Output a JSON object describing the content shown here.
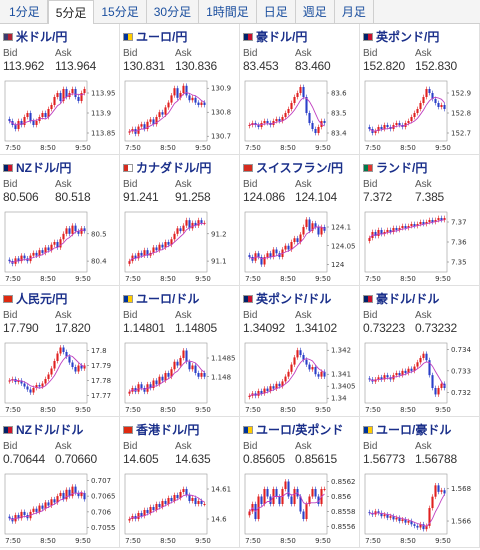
{
  "timeframe_tabs": [
    "1分足",
    "5分足",
    "15分足",
    "30分足",
    "1時間足",
    "日足",
    "週足",
    "月足"
  ],
  "active_tab_index": 1,
  "labels": {
    "bid": "Bid",
    "ask": "Ask"
  },
  "colors": {
    "up": "#e02020",
    "down": "#2a3fc8",
    "ma": "#c040c0",
    "title": "#1a2f8a",
    "tab_link": "#1a4e9e"
  },
  "cards": [
    {
      "pair": "米ドル/円",
      "icon": "flag-us",
      "flag": [
        "#3c3b6e",
        "#b22234"
      ],
      "bid": "113.962",
      "ask": "113.964",
      "chart_data": {
        "type": "candlestick",
        "x_ticks": [
          "7:50",
          "8:50",
          "9:50"
        ],
        "y_ticks": [
          "113.95",
          "113.9",
          "113.85"
        ],
        "ylim": [
          113.83,
          113.98
        ],
        "ma_color": "#c040c0",
        "close": [
          113.88,
          113.87,
          113.86,
          113.88,
          113.87,
          113.89,
          113.9,
          113.88,
          113.87,
          113.88,
          113.89,
          113.9,
          113.89,
          113.91,
          113.92,
          113.94,
          113.95,
          113.93,
          113.96,
          113.94,
          113.95,
          113.96,
          113.94,
          113.93,
          113.95,
          113.96
        ]
      }
    },
    {
      "pair": "ユーロ/円",
      "icon": "flag-eu",
      "flag": [
        "#003399",
        "#ffcc00"
      ],
      "bid": "130.831",
      "ask": "130.836",
      "chart_data": {
        "type": "candlestick",
        "x_ticks": [
          "7:50",
          "8:50",
          "9:50"
        ],
        "y_ticks": [
          "130.9",
          "130.8",
          "130.7"
        ],
        "ylim": [
          130.68,
          130.93
        ],
        "ma_color": "#c040c0",
        "close": [
          130.72,
          130.73,
          130.71,
          130.74,
          130.75,
          130.73,
          130.76,
          130.77,
          130.75,
          130.78,
          130.8,
          130.79,
          130.82,
          130.84,
          130.87,
          130.9,
          130.86,
          130.88,
          130.91,
          130.87,
          130.85,
          130.86,
          130.84,
          130.83,
          130.84,
          130.83
        ]
      }
    },
    {
      "pair": "豪ドル/円",
      "icon": "flag-au",
      "flag": [
        "#012169",
        "#c8102e"
      ],
      "bid": "83.453",
      "ask": "83.460",
      "chart_data": {
        "type": "candlestick",
        "x_ticks": [
          "7:50",
          "8:50",
          "9:50"
        ],
        "y_ticks": [
          "83.6",
          "83.5",
          "83.4"
        ],
        "ylim": [
          83.36,
          83.66
        ],
        "ma_color": "#c040c0",
        "close": [
          83.44,
          83.45,
          83.44,
          83.43,
          83.45,
          83.46,
          83.45,
          83.44,
          83.46,
          83.47,
          83.46,
          83.48,
          83.5,
          83.52,
          83.55,
          83.58,
          83.6,
          83.63,
          83.58,
          83.5,
          83.45,
          83.42,
          83.4,
          83.43,
          83.46,
          83.45
        ]
      }
    },
    {
      "pair": "英ポンド/円",
      "icon": "flag-gb",
      "flag": [
        "#012169",
        "#c8102e"
      ],
      "bid": "152.820",
      "ask": "152.830",
      "chart_data": {
        "type": "candlestick",
        "x_ticks": [
          "7:50",
          "8:50",
          "9:50"
        ],
        "y_ticks": [
          "152.9",
          "152.8",
          "152.7"
        ],
        "ylim": [
          152.66,
          152.96
        ],
        "ma_color": "#c040c0",
        "close": [
          152.72,
          152.7,
          152.71,
          152.73,
          152.72,
          152.74,
          152.73,
          152.72,
          152.74,
          152.75,
          152.74,
          152.73,
          152.75,
          152.76,
          152.78,
          152.8,
          152.82,
          152.85,
          152.88,
          152.92,
          152.9,
          152.87,
          152.85,
          152.83,
          152.84,
          152.82
        ]
      }
    },
    {
      "pair": "NZドル/円",
      "icon": "flag-nz",
      "flag": [
        "#012169",
        "#cc142b"
      ],
      "bid": "80.506",
      "ask": "80.518",
      "chart_data": {
        "type": "candlestick",
        "x_ticks": [
          "7:50",
          "8:50",
          "9:50"
        ],
        "y_ticks": [
          "80.5",
          "80.4"
        ],
        "ylim": [
          80.36,
          80.58
        ],
        "ma_color": "#c040c0",
        "close": [
          80.4,
          80.39,
          80.41,
          80.4,
          80.42,
          80.41,
          80.4,
          80.42,
          80.43,
          80.42,
          80.44,
          80.43,
          80.45,
          80.44,
          80.46,
          80.47,
          80.45,
          80.48,
          80.5,
          80.52,
          80.5,
          80.53,
          80.51,
          80.5,
          80.52,
          80.51
        ]
      }
    },
    {
      "pair": "カナダドル/円",
      "icon": "flag-ca",
      "flag": [
        "#d52b1e",
        "#ffffff"
      ],
      "bid": "91.241",
      "ask": "91.258",
      "chart_data": {
        "type": "candlestick",
        "x_ticks": [
          "7:50",
          "8:50",
          "9:50"
        ],
        "y_ticks": [
          "91.2",
          "91.1"
        ],
        "ylim": [
          91.06,
          91.28
        ],
        "ma_color": "#c040c0",
        "close": [
          91.1,
          91.12,
          91.11,
          91.13,
          91.12,
          91.14,
          91.12,
          91.13,
          91.15,
          91.14,
          91.16,
          91.15,
          91.17,
          91.16,
          91.18,
          91.2,
          91.22,
          91.21,
          91.23,
          91.25,
          91.22,
          91.24,
          91.23,
          91.25,
          91.24,
          91.24
        ]
      }
    },
    {
      "pair": "スイスフラン/円",
      "icon": "flag-ch",
      "flag": [
        "#d52b1e",
        "#d52b1e"
      ],
      "bid": "124.086",
      "ask": "124.104",
      "chart_data": {
        "type": "candlestick",
        "x_ticks": [
          "7:50",
          "8:50",
          "9:50"
        ],
        "y_ticks": [
          "124.1",
          "124.05",
          "124"
        ],
        "ylim": [
          123.98,
          124.14
        ],
        "ma_color": "#c040c0",
        "close": [
          124.02,
          124.01,
          124.03,
          124.02,
          124.0,
          124.02,
          124.03,
          124.02,
          124.04,
          124.03,
          124.02,
          124.04,
          124.05,
          124.04,
          124.06,
          124.07,
          124.06,
          124.08,
          124.1,
          124.12,
          124.09,
          124.11,
          124.1,
          124.08,
          124.1,
          124.09
        ]
      }
    },
    {
      "pair": "ランド/円",
      "icon": "flag-za",
      "flag": [
        "#007a4d",
        "#de3831"
      ],
      "bid": "7.372",
      "ask": "7.385",
      "chart_data": {
        "type": "candlestick",
        "x_ticks": [
          "7:50",
          "8:50",
          "9:50"
        ],
        "y_ticks": [
          "7.37",
          "7.36",
          "7.35"
        ],
        "ylim": [
          7.345,
          7.375
        ],
        "ma_color": "#c040c0",
        "close": [
          7.362,
          7.365,
          7.363,
          7.366,
          7.364,
          7.365,
          7.366,
          7.365,
          7.367,
          7.366,
          7.367,
          7.368,
          7.367,
          7.368,
          7.369,
          7.368,
          7.369,
          7.37,
          7.369,
          7.37,
          7.371,
          7.37,
          7.371,
          7.372,
          7.371,
          7.372
        ]
      }
    },
    {
      "pair": "人民元/円",
      "icon": "flag-cn",
      "flag": [
        "#de2910",
        "#de2910"
      ],
      "bid": "17.790",
      "ask": "17.820",
      "chart_data": {
        "type": "candlestick",
        "x_ticks": [
          "7:50",
          "8:50",
          "9:50"
        ],
        "y_ticks": [
          "17.8",
          "17.79",
          "17.78",
          "17.77"
        ],
        "ylim": [
          17.765,
          17.805
        ],
        "ma_color": "#c040c0",
        "close": [
          17.78,
          17.781,
          17.779,
          17.78,
          17.778,
          17.776,
          17.774,
          17.772,
          17.775,
          17.777,
          17.776,
          17.778,
          17.781,
          17.784,
          17.788,
          17.793,
          17.798,
          17.802,
          17.799,
          17.796,
          17.792,
          17.789,
          17.786,
          17.79,
          17.788,
          17.79
        ]
      }
    },
    {
      "pair": "ユーロ/ドル",
      "icon": "flag-eu",
      "flag": [
        "#003399",
        "#ffcc00"
      ],
      "bid": "1.14801",
      "ask": "1.14805",
      "chart_data": {
        "type": "candlestick",
        "x_ticks": [
          "7:50",
          "8:50",
          "9:50"
        ],
        "y_ticks": [
          "1.1485",
          "1.148"
        ],
        "ylim": [
          1.1473,
          1.1489
        ],
        "ma_color": "#c040c0",
        "close": [
          1.1476,
          1.1477,
          1.1476,
          1.1478,
          1.1477,
          1.1476,
          1.1478,
          1.1477,
          1.1479,
          1.1478,
          1.148,
          1.1479,
          1.1481,
          1.148,
          1.1482,
          1.1484,
          1.1483,
          1.1485,
          1.1487,
          1.1484,
          1.1482,
          1.1483,
          1.1481,
          1.148,
          1.1481,
          1.148
        ]
      }
    },
    {
      "pair": "英ポンド/ドル",
      "icon": "flag-gb",
      "flag": [
        "#012169",
        "#c8102e"
      ],
      "bid": "1.34092",
      "ask": "1.34102",
      "chart_data": {
        "type": "candlestick",
        "x_ticks": [
          "7:50",
          "8:50",
          "9:50"
        ],
        "y_ticks": [
          "1.342",
          "1.341",
          "1.3405",
          "1.34"
        ],
        "ylim": [
          1.3398,
          1.3423
        ],
        "ma_color": "#c040c0",
        "close": [
          1.3401,
          1.3402,
          1.3401,
          1.3403,
          1.3402,
          1.3404,
          1.3403,
          1.3405,
          1.3404,
          1.3406,
          1.3405,
          1.3407,
          1.3409,
          1.3411,
          1.3414,
          1.3417,
          1.342,
          1.3418,
          1.3416,
          1.3414,
          1.3412,
          1.3413,
          1.341,
          1.3409,
          1.3411,
          1.3409
        ]
      }
    },
    {
      "pair": "豪ドル/ドル",
      "icon": "flag-au",
      "flag": [
        "#012169",
        "#c8102e"
      ],
      "bid": "0.73223",
      "ask": "0.73232",
      "chart_data": {
        "type": "candlestick",
        "x_ticks": [
          "7:50",
          "8:50",
          "9:50"
        ],
        "y_ticks": [
          "0.734",
          "0.733",
          "0.732"
        ],
        "ylim": [
          0.7315,
          0.7343
        ],
        "ma_color": "#c040c0",
        "close": [
          0.7326,
          0.7325,
          0.7326,
          0.7327,
          0.7326,
          0.7328,
          0.7327,
          0.7326,
          0.7328,
          0.7329,
          0.7328,
          0.733,
          0.7329,
          0.7331,
          0.733,
          0.7332,
          0.7334,
          0.7336,
          0.7338,
          0.7335,
          0.7328,
          0.7322,
          0.7319,
          0.7322,
          0.7324,
          0.7322
        ]
      }
    },
    {
      "pair": "NZドル/ドル",
      "icon": "flag-nz",
      "flag": [
        "#012169",
        "#cc142b"
      ],
      "bid": "0.70644",
      "ask": "0.70660",
      "chart_data": {
        "type": "candlestick",
        "x_ticks": [
          "7:50",
          "8:50",
          "9:50"
        ],
        "y_ticks": [
          "0.707",
          "0.7065",
          "0.706",
          "0.7055"
        ],
        "ylim": [
          0.7053,
          0.7072
        ],
        "ma_color": "#c040c0",
        "close": [
          0.7058,
          0.7057,
          0.7059,
          0.7058,
          0.706,
          0.7059,
          0.7058,
          0.706,
          0.7061,
          0.706,
          0.7062,
          0.7061,
          0.7063,
          0.7062,
          0.7064,
          0.7063,
          0.7065,
          0.7066,
          0.7064,
          0.7067,
          0.7065,
          0.7068,
          0.7066,
          0.7065,
          0.7066,
          0.7064
        ]
      }
    },
    {
      "pair": "香港ドル/円",
      "icon": "flag-hk",
      "flag": [
        "#de2910",
        "#de2910"
      ],
      "bid": "14.605",
      "ask": "14.635",
      "chart_data": {
        "type": "candlestick",
        "x_ticks": [
          "7:50",
          "8:50",
          "9:50"
        ],
        "y_ticks": [
          "14.61",
          "14.6"
        ],
        "ylim": [
          14.595,
          14.615
        ],
        "ma_color": "#c040c0",
        "close": [
          14.6,
          14.601,
          14.6,
          14.602,
          14.601,
          14.603,
          14.602,
          14.604,
          14.603,
          14.605,
          14.604,
          14.606,
          14.605,
          14.607,
          14.606,
          14.608,
          14.607,
          14.609,
          14.61,
          14.608,
          14.606,
          14.607,
          14.605,
          14.606,
          14.605,
          14.605
        ]
      }
    },
    {
      "pair": "ユーロ/英ポンド",
      "icon": "flag-eu",
      "flag": [
        "#003399",
        "#ffcc00"
      ],
      "bid": "0.85605",
      "ask": "0.85615",
      "chart_data": {
        "type": "candlestick",
        "x_ticks": [
          "7:50",
          "8:50",
          "9:50"
        ],
        "y_ticks": [
          "0.8562",
          "0.856",
          "0.8558",
          "0.8556"
        ],
        "ylim": [
          0.8555,
          0.8563
        ],
        "ma_color": "#c040c0",
        "close": [
          0.8558,
          0.8559,
          0.8557,
          0.856,
          0.8559,
          0.8561,
          0.856,
          0.8559,
          0.8561,
          0.856,
          0.8559,
          0.8561,
          0.8562,
          0.856,
          0.8559,
          0.8561,
          0.856,
          0.8558,
          0.8557,
          0.8559,
          0.856,
          0.8561,
          0.856,
          0.8559,
          0.8561,
          0.8561
        ]
      }
    },
    {
      "pair": "ユーロ/豪ドル",
      "icon": "flag-eu",
      "flag": [
        "#003399",
        "#ffcc00"
      ],
      "bid": "1.56773",
      "ask": "1.56788",
      "chart_data": {
        "type": "candlestick",
        "x_ticks": [
          "7:50",
          "8:50",
          "9:50"
        ],
        "y_ticks": [
          "1.568",
          "1.566"
        ],
        "ylim": [
          1.5652,
          1.5689
        ],
        "ma_color": "#c040c0",
        "close": [
          1.5665,
          1.5664,
          1.5666,
          1.5665,
          1.5663,
          1.5664,
          1.5662,
          1.5663,
          1.5661,
          1.5662,
          1.566,
          1.5661,
          1.5659,
          1.566,
          1.5658,
          1.5657,
          1.5656,
          1.5658,
          1.5655,
          1.5657,
          1.5668,
          1.5675,
          1.5682,
          1.5678,
          1.5679,
          1.5677
        ]
      }
    }
  ]
}
